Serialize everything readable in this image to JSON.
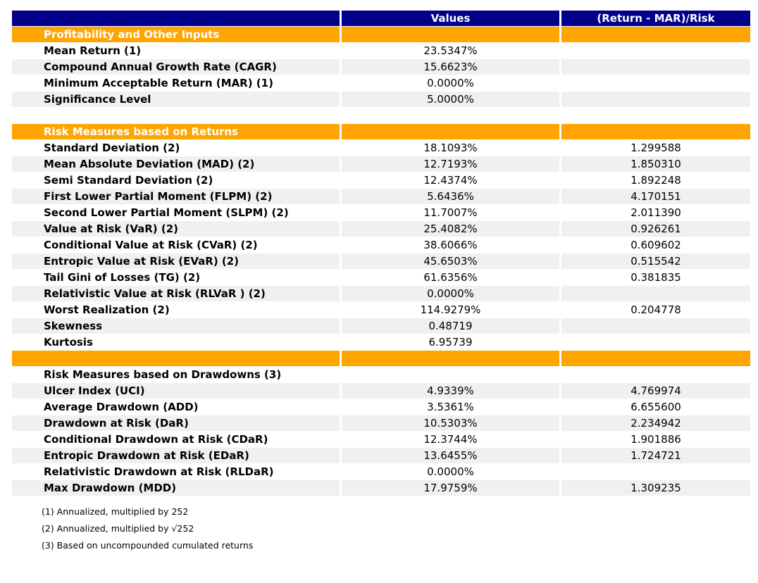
{
  "chart_data": {
    "type": "table",
    "columns": [
      "",
      "Values",
      "(Return - MAR)/Risk"
    ],
    "rows": [
      {
        "type": "section",
        "label": "Profitability and Other Inputs",
        "value": "",
        "ratio": ""
      },
      {
        "type": "data",
        "label": "Mean Return (1)",
        "value": "23.5347%",
        "ratio": ""
      },
      {
        "type": "data",
        "label": "Compound Annual Growth Rate (CAGR)",
        "value": "15.6623%",
        "ratio": ""
      },
      {
        "type": "data",
        "label": "Minimum Acceptable Return (MAR) (1)",
        "value": "0.0000%",
        "ratio": ""
      },
      {
        "type": "data",
        "label": "Significance Level",
        "value": "5.0000%",
        "ratio": ""
      },
      {
        "type": "blank",
        "label": "",
        "value": "",
        "ratio": ""
      },
      {
        "type": "section",
        "label": "Risk Measures based on Returns",
        "value": "",
        "ratio": ""
      },
      {
        "type": "data",
        "label": "Standard Deviation (2)",
        "value": "18.1093%",
        "ratio": "1.299588"
      },
      {
        "type": "data",
        "label": "Mean Absolute Deviation (MAD) (2)",
        "value": "12.7193%",
        "ratio": "1.850310"
      },
      {
        "type": "data",
        "label": "Semi Standard Deviation (2)",
        "value": "12.4374%",
        "ratio": "1.892248"
      },
      {
        "type": "data",
        "label": "First Lower Partial Moment (FLPM) (2)",
        "value": "5.6436%",
        "ratio": "4.170151"
      },
      {
        "type": "data",
        "label": "Second Lower Partial Moment (SLPM) (2)",
        "value": "11.7007%",
        "ratio": "2.011390"
      },
      {
        "type": "data",
        "label": "Value at Risk (VaR) (2)",
        "value": "25.4082%",
        "ratio": "0.926261"
      },
      {
        "type": "data",
        "label": "Conditional Value at Risk (CVaR) (2)",
        "value": "38.6066%",
        "ratio": "0.609602"
      },
      {
        "type": "data",
        "label": "Entropic Value at Risk (EVaR) (2)",
        "value": "45.6503%",
        "ratio": "0.515542"
      },
      {
        "type": "data",
        "label": "Tail Gini of Losses (TG) (2)",
        "value": "61.6356%",
        "ratio": "0.381835"
      },
      {
        "type": "data",
        "label": "Relativistic Value at Risk (RLVaR ) (2)",
        "value": "0.0000%",
        "ratio": ""
      },
      {
        "type": "data",
        "label": "Worst Realization (2)",
        "value": "114.9279%",
        "ratio": "0.204778"
      },
      {
        "type": "data",
        "label": "Skewness",
        "value": "0.48719",
        "ratio": ""
      },
      {
        "type": "data",
        "label": "Kurtosis",
        "value": "6.95739",
        "ratio": ""
      },
      {
        "type": "section",
        "label": "",
        "value": "",
        "ratio": ""
      },
      {
        "type": "subheader",
        "label": "Risk Measures based on Drawdowns (3)",
        "value": "",
        "ratio": ""
      },
      {
        "type": "data",
        "label": "Ulcer Index (UCI)",
        "value": "4.9339%",
        "ratio": "4.769974"
      },
      {
        "type": "data",
        "label": "Average Drawdown (ADD)",
        "value": "3.5361%",
        "ratio": "6.655600"
      },
      {
        "type": "data",
        "label": "Drawdown at Risk (DaR)",
        "value": "10.5303%",
        "ratio": "2.234942"
      },
      {
        "type": "data",
        "label": "Conditional Drawdown at Risk (CDaR)",
        "value": "12.3744%",
        "ratio": "1.901886"
      },
      {
        "type": "data",
        "label": "Entropic Drawdown at Risk (EDaR)",
        "value": "13.6455%",
        "ratio": "1.724721"
      },
      {
        "type": "data",
        "label": "Relativistic Drawdown at Risk (RLDaR)",
        "value": "0.0000%",
        "ratio": ""
      },
      {
        "type": "data",
        "label": "Max Drawdown (MDD)",
        "value": "17.9759%",
        "ratio": "1.309235"
      }
    ],
    "footnotes": [
      "(1) Annualized, multiplied by 252",
      "(2) Annualized, multiplied by √252",
      "(3) Based on uncompounded cumulated returns"
    ]
  },
  "colors": {
    "header_bg": "#00008B",
    "header_text": "#FFFFFF",
    "section_bg": "#FFA500",
    "section_text": "#FFFFFF",
    "stripe_bg": "#F0F0F0",
    "row_bg": "#FFFFFF",
    "label_text": "#000000"
  }
}
